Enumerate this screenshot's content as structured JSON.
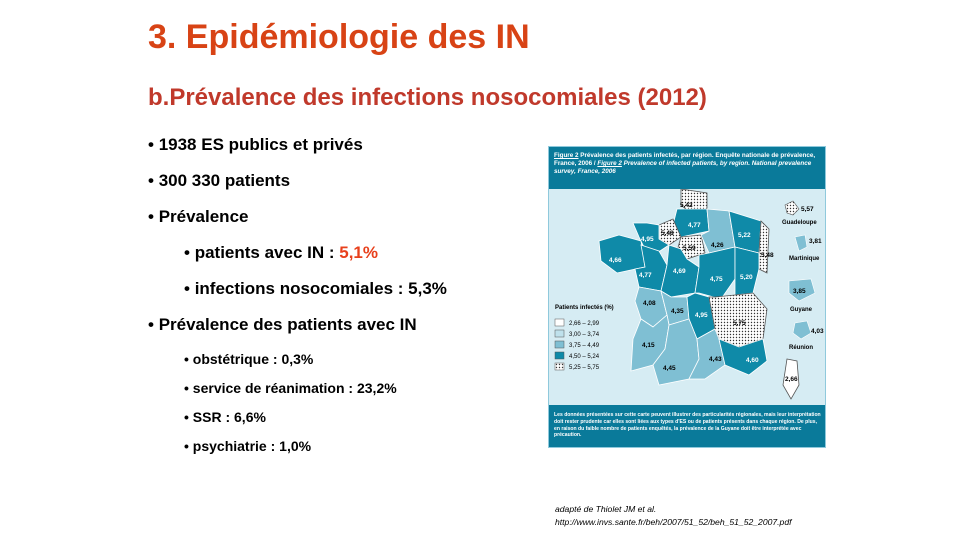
{
  "slide": {
    "title": "3. Epidémiologie des IN",
    "subtitle": "b.Prévalence des infections nosocomiales (2012)"
  },
  "bullets": {
    "b1": "1938 ES publics et privés",
    "b2": "300 330 patients",
    "b3": "Prévalence",
    "b3a_label": "patients avec IN : ",
    "b3a_value": "5,1%",
    "b3b": "infections nosocomiales  : 5,3%",
    "b4": "Prévalence des patients avec IN",
    "b4a": "obstétrique : 0,3%",
    "b4b": "service de réanimation : 23,2%",
    "b4c": "SSR : 6,6%",
    "b4d": "psychiatrie : 1,0%"
  },
  "figure": {
    "caption_label": "Figure 2",
    "caption_fr": " Prévalence des patients infectés, par région. Enquête nationale de prévalence, France, 2006 / ",
    "caption_label_en": "Figure 2",
    "caption_en": " Prevalence of infected patients, by region. National prevalence survey, France, 2006",
    "legend_title": "Patients infectés (%)",
    "legend": [
      {
        "label": "2,66 – 2,99",
        "class": "c1"
      },
      {
        "label": "3,00 – 3,74",
        "class": "c2"
      },
      {
        "label": "3,75 – 4,49",
        "class": "c3"
      },
      {
        "label": "4,50 – 5,24",
        "class": "c4"
      },
      {
        "label": "5,25 – 5,75",
        "class": "c5"
      }
    ],
    "colors": {
      "c1": "#ffffff",
      "c2": "#bfe1ec",
      "c3": "#7fbfd3",
      "c4": "#0f8aa8",
      "c5": "#ffffff",
      "sea": "#d6ecf3",
      "banner": "#0a7a9a"
    },
    "regions": {
      "nord": "5,42",
      "picardie": "4,77",
      "hnormandie": "5,48",
      "idf": "5,59",
      "champagne": "4,26",
      "lorraine": "5,22",
      "alsace": "5,48",
      "bretagne": "4,66",
      "bnormandie": "4,95",
      "paysloire": "4,77",
      "centre": "4,69",
      "bourgogne": "4,75",
      "franchecomte": "5,20",
      "poitou": "4,08",
      "limousin": "4,35",
      "auvergne": "4,95",
      "rhonealpes": "5,75",
      "aquitaine": "4,15",
      "midipyrenees": "4,45",
      "languedoc": "4,43",
      "paca": "4,60",
      "corse": "2,66"
    },
    "overseas": [
      {
        "name": "Guadeloupe",
        "value": "5,57"
      },
      {
        "name": "Martinique",
        "value": "3,81"
      },
      {
        "name": "Guyane",
        "value": "3,85"
      },
      {
        "name": "Réunion",
        "value": "4,03"
      }
    ],
    "note": "Les données présentées sur cette carte peuvent illustrer des particularités régionales, mais leur interprétation doit rester prudente car elles sont liées aux types d'ES ou de patients présents dans chaque région. De plus, en raison du faible nombre de patients enquêtés, la prévalence de la Guyane doit être interprétée avec précaution."
  },
  "source": {
    "line1": "adapté de Thiolet JM et al.",
    "line2": "http://www.invs.sante.fr/beh/2007/51_52/beh_51_52_2007.pdf"
  }
}
